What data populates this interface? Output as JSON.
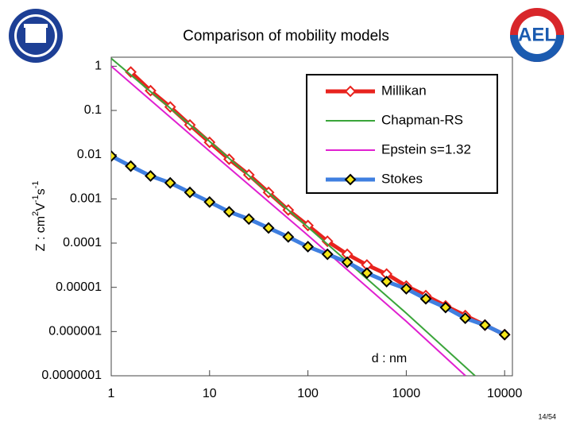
{
  "chart_data": {
    "type": "line",
    "title": "Comparison of mobility models",
    "x_label": "d : nm",
    "y_label_parts": [
      "Z : cm",
      "2",
      "V",
      "-1",
      "s",
      "-1"
    ],
    "log_x": true,
    "log_y": true,
    "xlim": [
      1,
      12000
    ],
    "ylim": [
      1e-07,
      1.6
    ],
    "xticks": [
      1,
      10,
      100,
      1000,
      10000
    ],
    "yticks": [
      1,
      0.1,
      0.01,
      0.001,
      0.0001,
      {
        "value": 1e-05,
        "label": "0.00001"
      },
      {
        "value": 1e-06,
        "label": "0.000001"
      },
      {
        "value": 1e-07,
        "label": "0.0000001"
      }
    ],
    "legend": "upper right",
    "series": [
      {
        "name": "Millikan",
        "color": "#e8231e",
        "width": 5,
        "marker": "diamond",
        "marker_color": "#ffffff",
        "x": [
          1.58,
          2.51,
          3.98,
          6.31,
          10,
          15.8,
          25.1,
          39.8,
          63.1,
          100,
          158,
          251,
          398,
          631,
          1000,
          1580,
          2510,
          3980,
          6310,
          10000
        ],
        "values": [
          0.74,
          0.28,
          0.12,
          0.047,
          0.019,
          0.0079,
          0.0035,
          0.0014,
          0.00056,
          0.00025,
          0.00011,
          5.6e-05,
          3.2e-05,
          2e-05,
          1.07e-05,
          6.5e-06,
          3.8e-06,
          2.3e-06,
          1.4e-06,
          8.5e-07
        ]
      },
      {
        "name": "Chapman-RS",
        "color": "#3aa53a",
        "width": 2,
        "x": [
          1,
          10,
          100,
          1000,
          5000
        ],
        "values": [
          1.5,
          0.02,
          0.00023,
          2.6e-06,
          1e-07
        ]
      },
      {
        "name": "Epstein s=1.32",
        "color": "#e020d0",
        "width": 2,
        "x": [
          1,
          10,
          100,
          1000,
          4000
        ],
        "values": [
          1,
          0.012,
          0.00015,
          1.7e-06,
          1e-07
        ]
      },
      {
        "name": "Stokes",
        "color": "#3f7fe0",
        "width": 5,
        "marker": "diamond",
        "marker_color": "#f5e61a",
        "x": [
          1,
          1.58,
          2.51,
          3.98,
          6.31,
          10,
          15.8,
          25.1,
          39.8,
          63.1,
          100,
          158,
          251,
          398,
          631,
          1000,
          1580,
          2510,
          3980,
          6310,
          10000
        ],
        "values": [
          0.0093,
          0.0055,
          0.0033,
          0.0023,
          0.0014,
          0.00085,
          0.00051,
          0.00035,
          0.00022,
          0.000138,
          8.3e-05,
          5.6e-05,
          3.7e-05,
          2.1e-05,
          1.35e-05,
          9.3e-06,
          5.5e-06,
          3.5e-06,
          2e-06,
          1.4e-06,
          8.5e-07
        ]
      }
    ]
  },
  "logo_text": "AEL",
  "page_number": "14/54"
}
